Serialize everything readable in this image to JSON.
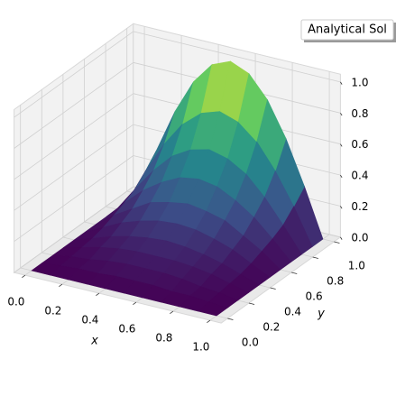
{
  "chart_data": {
    "type": "surface",
    "colormap": "viridis",
    "grid": true,
    "legend": "upper right",
    "x": [
      0,
      0.1,
      0.2,
      0.3,
      0.4,
      0.5,
      0.6,
      0.7,
      0.8,
      0.9,
      1
    ],
    "y": [
      0,
      0.1,
      0.2,
      0.3,
      0.4,
      0.5,
      0.6,
      0.7,
      0.8,
      0.9,
      1
    ],
    "series": [
      {
        "name": "Analytical Sol",
        "z": [
          [
            0,
            0,
            0,
            0,
            0,
            0,
            0,
            0,
            0,
            0,
            0
          ],
          [
            0,
            0.01,
            0.02,
            0.02,
            0.03,
            0.03,
            0.03,
            0.02,
            0.02,
            0.01,
            0
          ],
          [
            0,
            0.02,
            0.03,
            0.05,
            0.06,
            0.06,
            0.06,
            0.05,
            0.03,
            0.02,
            0
          ],
          [
            0,
            0.03,
            0.06,
            0.08,
            0.09,
            0.09,
            0.09,
            0.08,
            0.06,
            0.03,
            0
          ],
          [
            0,
            0.04,
            0.08,
            0.11,
            0.13,
            0.14,
            0.13,
            0.11,
            0.08,
            0.04,
            0
          ],
          [
            0,
            0.06,
            0.12,
            0.16,
            0.19,
            0.2,
            0.19,
            0.16,
            0.12,
            0.06,
            0
          ],
          [
            0,
            0.09,
            0.16,
            0.23,
            0.26,
            0.28,
            0.26,
            0.23,
            0.16,
            0.09,
            0
          ],
          [
            0,
            0.12,
            0.23,
            0.31,
            0.37,
            0.39,
            0.37,
            0.31,
            0.23,
            0.12,
            0
          ],
          [
            0,
            0.16,
            0.31,
            0.43,
            0.5,
            0.53,
            0.5,
            0.43,
            0.31,
            0.16,
            0
          ],
          [
            0,
            0.23,
            0.43,
            0.59,
            0.69,
            0.73,
            0.69,
            0.59,
            0.43,
            0.23,
            0
          ],
          [
            0,
            0.31,
            0.59,
            0.81,
            0.95,
            1,
            0.95,
            0.81,
            0.59,
            0.31,
            0
          ]
        ]
      }
    ],
    "xlabel": "x",
    "ylabel": "y",
    "xlim": [
      0,
      1
    ],
    "ylim": [
      0,
      1
    ],
    "zlim": [
      0,
      1
    ],
    "xticks": [
      {
        "value": 0,
        "label": "0.0"
      },
      {
        "value": 0.2,
        "label": "0.2"
      },
      {
        "value": 0.4,
        "label": "0.4"
      },
      {
        "value": 0.6,
        "label": "0.6"
      },
      {
        "value": 0.8,
        "label": "0.8"
      },
      {
        "value": 1,
        "label": "1.0"
      }
    ],
    "yticks": [
      {
        "value": 0,
        "label": "0.0"
      },
      {
        "value": 0.2,
        "label": "0.2"
      },
      {
        "value": 0.4,
        "label": "0.4"
      },
      {
        "value": 0.6,
        "label": "0.6"
      },
      {
        "value": 0.8,
        "label": "0.8"
      },
      {
        "value": 1,
        "label": "1.0"
      }
    ],
    "zticks": [
      {
        "value": 0,
        "label": "0.0"
      },
      {
        "value": 0.2,
        "label": "0.2"
      },
      {
        "value": 0.4,
        "label": "0.4"
      },
      {
        "value": 0.6,
        "label": "0.6"
      },
      {
        "value": 0.8,
        "label": "0.8"
      },
      {
        "value": 1,
        "label": "1.0"
      }
    ]
  }
}
